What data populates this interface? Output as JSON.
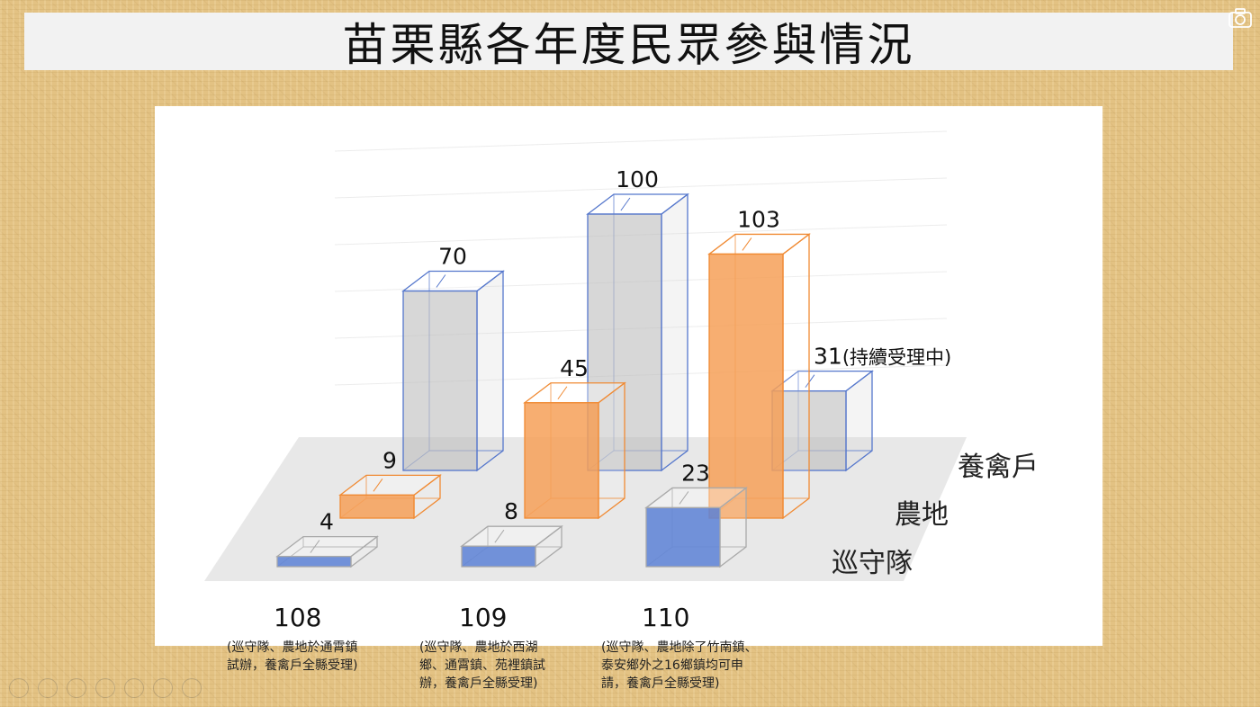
{
  "slide": {
    "title": "苗栗縣各年度民眾參與情況",
    "camera_icon": "camera-icon"
  },
  "chart_data": {
    "type": "bar",
    "title": "苗栗縣各年度民眾參與情況",
    "categories": [
      "108",
      "109",
      "110"
    ],
    "category_notes": [
      "(巡守隊、農地於通霄鎮\n試辦，養禽戶全縣受理)",
      "(巡守隊、農地於西湖\n鄉、通霄鎮、苑裡鎮試\n辦，養禽戶全縣受理)",
      "(巡守隊、農地除了竹南鎮、\n泰安鄉外之16鄉鎮均可申\n請，養禽戶全縣受理)"
    ],
    "series": [
      {
        "name": "巡守隊",
        "color": "#6f8fd8",
        "values": [
          4,
          8,
          23
        ],
        "labels": [
          "4",
          "8",
          "23"
        ]
      },
      {
        "name": "農地",
        "color": "#f5a65f",
        "values": [
          9,
          45,
          103
        ],
        "labels": [
          "9",
          "45",
          "103"
        ]
      },
      {
        "name": "養禽戶",
        "color": "#c8c8c8",
        "values": [
          70,
          100,
          31
        ],
        "labels": [
          "70",
          "100",
          "31"
        ]
      }
    ],
    "annotations": [
      "(持續受理中)"
    ],
    "grid": true,
    "render": "3d-bars"
  }
}
